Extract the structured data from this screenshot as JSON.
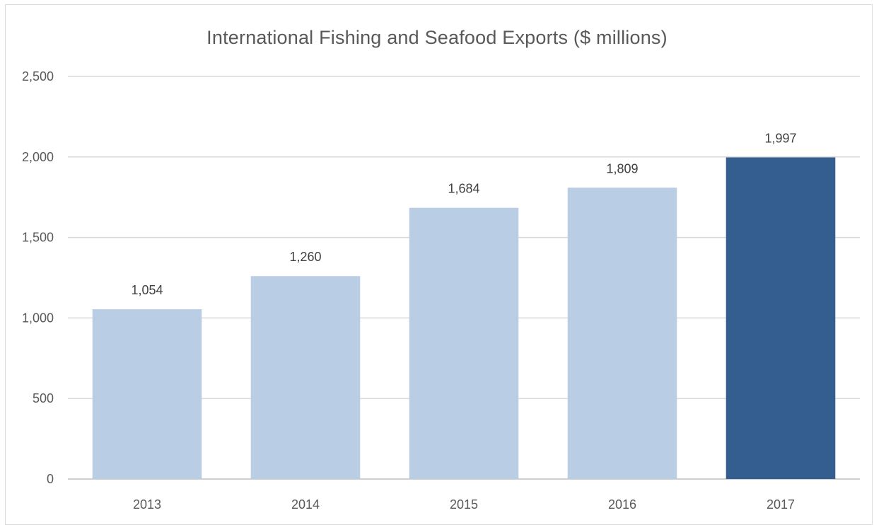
{
  "chart_data": {
    "type": "bar",
    "title": "International Fishing and Seafood Exports ($ millions)",
    "categories": [
      "2013",
      "2014",
      "2015",
      "2016",
      "2017"
    ],
    "values": [
      1054,
      1260,
      1684,
      1809,
      1997
    ],
    "data_labels": [
      "1,054",
      "1,260",
      "1,684",
      "1,809",
      "1,997"
    ],
    "ylim": [
      0,
      2500
    ],
    "yticks": [
      0,
      500,
      1000,
      1500,
      2000,
      2500
    ],
    "ytick_labels": [
      "0",
      "500",
      "1,000",
      "1,500",
      "2,000",
      "2,500"
    ],
    "xlabel": "",
    "ylabel": "",
    "grid": true,
    "legend": "none",
    "colors": {
      "bar": "#b9cde4",
      "highlight_bar": "#345e8f",
      "highlight_index": 4,
      "gridline": "#d9d9d9",
      "text": "#595959"
    }
  }
}
